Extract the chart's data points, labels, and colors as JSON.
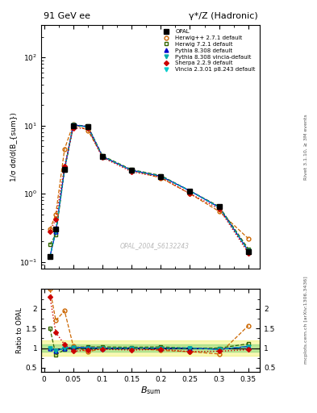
{
  "title_left": "91 GeV ee",
  "title_right": "γ*/Z (Hadronic)",
  "xlabel": "B_{sum}",
  "ylabel_main": "1/σ dσ/d(B_{sum})",
  "ylabel_ratio": "Ratio to OPAL",
  "watermark": "OPAL_2004_S6132243",
  "right_label_top": "Rivet 3.1.10, ≥ 3M events",
  "right_label_bottom": "mcplots.cern.ch [arXiv:1306.3436]",
  "x_data": [
    0.01,
    0.02,
    0.035,
    0.05,
    0.075,
    0.1,
    0.15,
    0.2,
    0.25,
    0.3,
    0.35
  ],
  "opal_y": [
    0.12,
    0.3,
    2.3,
    10.0,
    9.5,
    3.5,
    2.2,
    1.8,
    1.1,
    0.65,
    0.14
  ],
  "herwig_pp_y": [
    0.3,
    0.5,
    4.5,
    10.5,
    8.5,
    3.5,
    2.2,
    1.7,
    1.0,
    0.55,
    0.22
  ],
  "herwig7_y": [
    0.18,
    0.25,
    2.2,
    10.2,
    9.8,
    3.6,
    2.25,
    1.85,
    1.1,
    0.65,
    0.155
  ],
  "pythia_y": [
    0.12,
    0.28,
    2.3,
    10.2,
    9.6,
    3.5,
    2.2,
    1.8,
    1.1,
    0.63,
    0.145
  ],
  "pythia_v_y": [
    0.12,
    0.28,
    2.3,
    10.1,
    9.5,
    3.5,
    2.2,
    1.8,
    1.1,
    0.63,
    0.145
  ],
  "sherpa_y": [
    0.28,
    0.42,
    2.5,
    9.2,
    9.0,
    3.4,
    2.1,
    1.75,
    1.0,
    0.6,
    0.135
  ],
  "vincia_y": [
    0.12,
    0.28,
    2.3,
    10.1,
    9.5,
    3.5,
    2.2,
    1.8,
    1.1,
    0.63,
    0.145
  ],
  "herwig_pp_ratio": [
    2.5,
    1.7,
    1.95,
    1.05,
    0.9,
    1.0,
    1.0,
    0.94,
    0.91,
    0.85,
    1.57
  ],
  "herwig7_ratio": [
    1.5,
    0.83,
    0.96,
    1.02,
    1.03,
    1.03,
    1.02,
    1.03,
    1.0,
    1.0,
    1.11
  ],
  "pythia_ratio": [
    1.0,
    0.93,
    1.0,
    1.02,
    1.01,
    1.0,
    1.0,
    1.0,
    1.0,
    0.97,
    1.04
  ],
  "pythia_v_ratio": [
    1.0,
    0.93,
    1.0,
    1.01,
    1.0,
    1.0,
    1.0,
    1.0,
    1.0,
    0.97,
    1.04
  ],
  "sherpa_ratio": [
    2.3,
    1.4,
    1.09,
    0.92,
    0.95,
    0.97,
    0.95,
    0.97,
    0.91,
    0.92,
    0.96
  ],
  "vincia_ratio": [
    1.0,
    0.93,
    1.0,
    1.01,
    1.0,
    1.0,
    1.0,
    1.0,
    1.0,
    0.97,
    1.04
  ],
  "colors": {
    "opal": "#000000",
    "herwig_pp": "#cc6600",
    "herwig7": "#336600",
    "pythia": "#0000cc",
    "pythia_v": "#00aaaa",
    "sherpa": "#cc0000",
    "vincia": "#00cccc"
  },
  "ylim_main": [
    0.08,
    300
  ],
  "ylim_ratio": [
    0.4,
    2.5
  ],
  "xlim": [
    -0.005,
    0.37
  ]
}
